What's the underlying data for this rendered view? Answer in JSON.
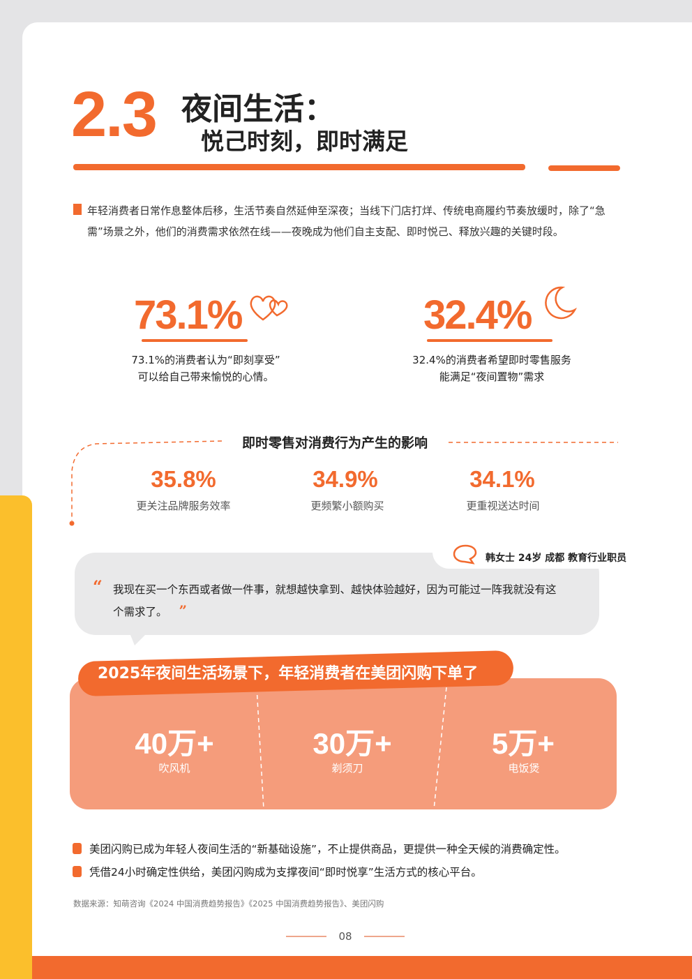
{
  "colors": {
    "accent": "#f26a2e",
    "salmon": "#f59c7b",
    "yellow": "#fbbf2c",
    "bubble": "#e9e9ea"
  },
  "header": {
    "number": "2.3",
    "title": "夜间生活：",
    "subtitle": "悦己时刻，即时满足"
  },
  "intro": "年轻消费者日常作息整体后移，生活节奏自然延伸至深夜；当线下门店打烊、传统电商履约节奏放缓时，除了“急需”场景之外，他们的消费需求依然在线——夜晚成为他们自主支配、即时悦己、释放兴趣的关键时段。",
  "stats": [
    {
      "value": "73.1%",
      "icon": "hearts-icon",
      "caption1": "73.1%的消费者认为“即刻享受”",
      "caption2": "可以给自己带来愉悦的心情。"
    },
    {
      "value": "32.4%",
      "icon": "moon-icon",
      "caption1": "32.4%的消费者希望即时零售服务",
      "caption2": "能满足“夜间置物”需求"
    }
  ],
  "impact": {
    "title": "即时零售对消费行为产生的影响",
    "items": [
      {
        "value": "35.8%",
        "label": "更关注品牌服务效率"
      },
      {
        "value": "34.9%",
        "label": "更频繁小额购买"
      },
      {
        "value": "34.1%",
        "label": "更重视送达时间"
      }
    ]
  },
  "quote": {
    "open": "“",
    "close": "”",
    "text": "我现在买一个东西或者做一件事，就想越快拿到、越快体验越好，因为可能过一阵我就没有这个需求了。",
    "speaker": "韩女士 24岁 成都 教育行业职员"
  },
  "orders": {
    "title": "2025年夜间生活场景下，年轻消费者在美团闪购下单了",
    "items": [
      {
        "value": "40万+",
        "label": "吹风机"
      },
      {
        "value": "30万+",
        "label": "剃须刀"
      },
      {
        "value": "5万+",
        "label": "电饭煲"
      }
    ]
  },
  "bullets": [
    "美团闪购已成为年轻人夜间生活的“新基础设施”，不止提供商品，更提供一种全天候的消费确定性。",
    "凭借24小时确定性供给，美团闪购成为支撑夜间“即时悦享”生活方式的核心平台。"
  ],
  "source": "数据来源：知萌咨询《2024 中国消费趋势报告》《2025 中国消费趋势报告》、美团闪购",
  "page": "08"
}
